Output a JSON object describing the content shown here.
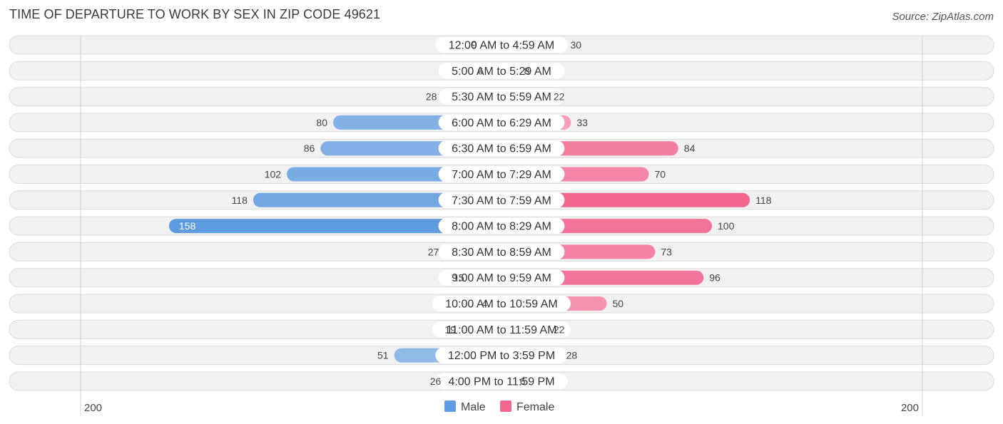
{
  "title": "TIME OF DEPARTURE TO WORK BY SEX IN ZIP CODE 49621",
  "source": "Source: ZipAtlas.com",
  "colors": {
    "male_light": "#a9c8ec",
    "male_dark": "#5e9be0",
    "female_light": "#f7b3c8",
    "female_dark": "#f2668f"
  },
  "chart_data": {
    "type": "bar",
    "orientation": "horizontal-diverging",
    "categories": [
      "12:00 AM to 4:59 AM",
      "5:00 AM to 5:29 AM",
      "5:30 AM to 5:59 AM",
      "6:00 AM to 6:29 AM",
      "6:30 AM to 6:59 AM",
      "7:00 AM to 7:29 AM",
      "7:30 AM to 7:59 AM",
      "8:00 AM to 8:29 AM",
      "8:30 AM to 8:59 AM",
      "9:00 AM to 9:59 AM",
      "10:00 AM to 10:59 AM",
      "11:00 AM to 11:59 AM",
      "12:00 PM to 3:59 PM",
      "4:00 PM to 11:59 PM"
    ],
    "series": [
      {
        "name": "Male",
        "values": [
          9,
          6,
          28,
          80,
          86,
          102,
          118,
          158,
          27,
          15,
          4,
          19,
          51,
          26
        ]
      },
      {
        "name": "Female",
        "values": [
          30,
          8,
          22,
          33,
          84,
          70,
          118,
          100,
          73,
          96,
          50,
          22,
          28,
          6
        ]
      }
    ],
    "axis": {
      "left_label": "200",
      "right_label": "200",
      "max": 200
    },
    "legend": {
      "position": "bottom-center",
      "items": [
        "Male",
        "Female"
      ]
    }
  }
}
